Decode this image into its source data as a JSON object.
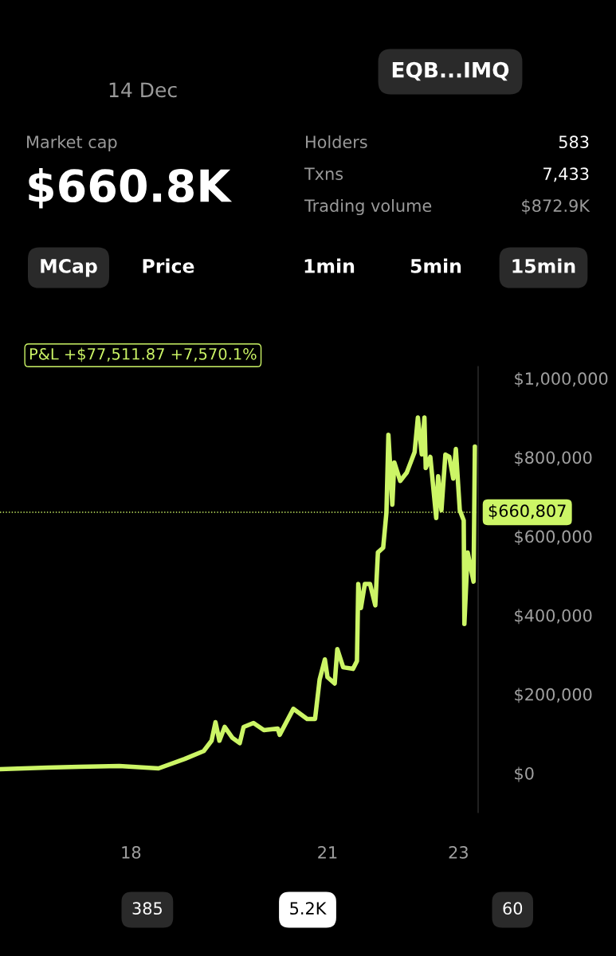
{
  "chart_data": {
    "type": "line",
    "x": [
      16.0,
      16.73,
      17.21,
      17.82,
      18.42,
      18.82,
      19.11,
      19.23,
      19.29,
      19.35,
      19.43,
      19.55,
      19.66,
      19.72,
      19.87,
      20.03,
      20.24,
      20.27,
      20.48,
      20.69,
      20.81,
      20.88,
      20.96,
      21.0,
      21.11,
      21.15,
      21.24,
      21.39,
      21.45,
      21.47,
      21.51,
      21.57,
      21.65,
      21.73,
      21.77,
      21.85,
      21.9,
      21.93,
      21.99,
      22.02,
      22.11,
      22.21,
      22.33,
      22.38,
      22.44,
      22.48,
      22.5,
      22.57,
      22.66,
      22.69,
      22.74,
      22.8,
      22.86,
      22.92,
      22.96,
      23.02,
      23.08,
      23.09,
      23.14,
      23.23,
      23.25
    ],
    "series": [
      {
        "color": "#ccf566",
        "values": [
          10000,
          14000,
          16000,
          18000,
          12000,
          36000,
          56000,
          82000,
          129000,
          82000,
          117000,
          89000,
          76000,
          117000,
          127000,
          109000,
          113000,
          97000,
          163000,
          137000,
          137000,
          237000,
          288000,
          243000,
          227000,
          314000,
          268000,
          264000,
          284000,
          479000,
          418000,
          479000,
          479000,
          425000,
          559000,
          571000,
          660000,
          857000,
          680000,
          787000,
          740000,
          761000,
          813000,
          901000,
          807000,
          901000,
          773000,
          801000,
          646000,
          752000,
          666000,
          807000,
          801000,
          746000,
          821000,
          666000,
          640000,
          378000,
          559000,
          485000,
          827000
        ]
      }
    ],
    "xlim": [
      16,
      23.3
    ],
    "xticks": [
      {
        "value": 18,
        "label": "18"
      },
      {
        "value": 21,
        "label": "21"
      },
      {
        "value": 23,
        "label": "23"
      }
    ],
    "ylim": [
      -100000,
      1030000
    ],
    "yticks": [
      {
        "value": 0,
        "label": "$0"
      },
      {
        "value": 200000,
        "label": "$200,000"
      },
      {
        "value": 400000,
        "label": "$400,000"
      },
      {
        "value": 600000,
        "label": "$600,000"
      },
      {
        "value": 800000,
        "label": "$800,000"
      },
      {
        "value": 1000000,
        "label": "$1,000,000"
      }
    ],
    "ref_lines": [
      {
        "axis": "y",
        "value": 660807,
        "label": "$660,807",
        "color": "#ccf566",
        "line_style": "dotted"
      }
    ],
    "grid": false,
    "legend": false,
    "marker": "none",
    "line_style": "solid",
    "annotations": [
      "14 Dec",
      "EQB...IMQ",
      "Market cap",
      "$660.8K",
      "Holders",
      "583",
      "Txns",
      "7,433",
      "Trading volume",
      "$872.9K",
      "MCap",
      "Price",
      "1min",
      "5min",
      "15min",
      "P&L +$77,511.87 +7,570.1%",
      "385",
      "5.2K",
      "60"
    ]
  }
}
